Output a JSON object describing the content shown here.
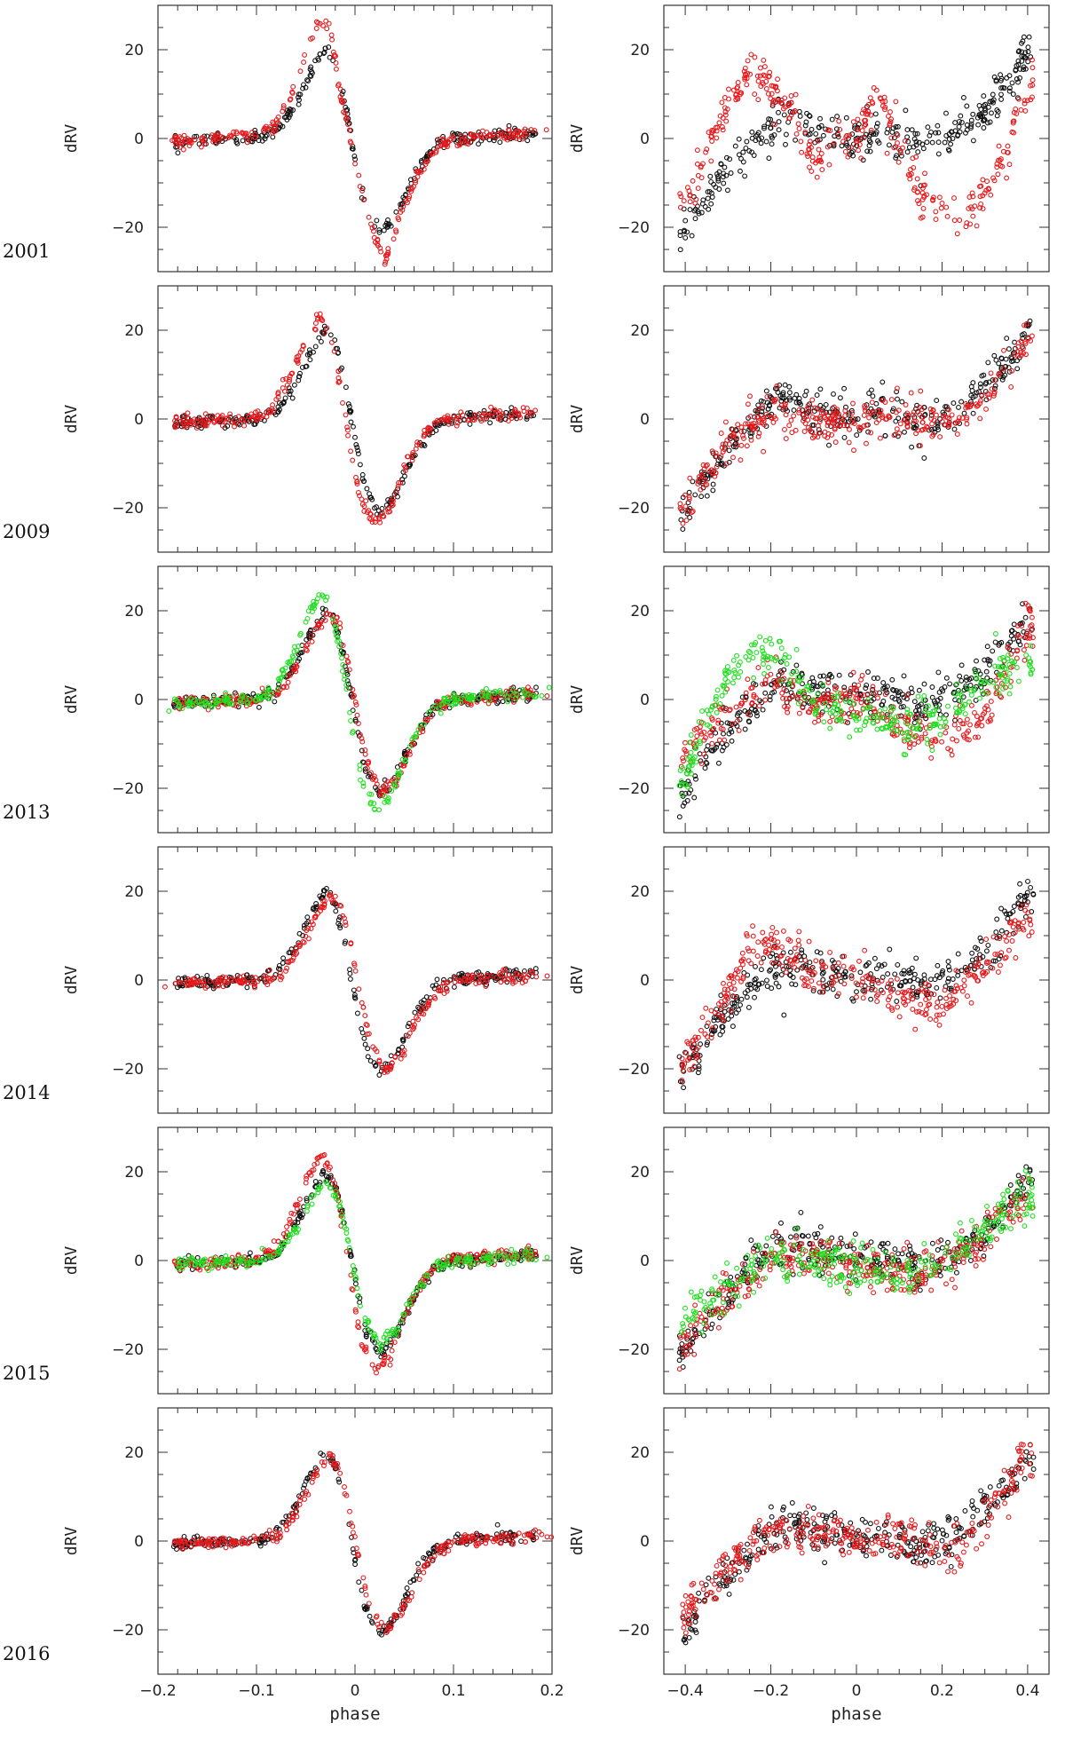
{
  "figure": {
    "ylabel": "dRV",
    "xlabel": "phase",
    "colors": {
      "black": "#111111",
      "red": "#e8191c",
      "green": "#1fe01f"
    }
  },
  "chart_data": {
    "type": "scatter",
    "layout": "6 rows x 2 columns of panels; each row is one epoch",
    "rows": [
      {
        "label": "2001",
        "colors_left": [
          "black",
          "red"
        ],
        "colors_right": [
          "black",
          "red"
        ]
      },
      {
        "label": "2009",
        "colors_left": [
          "black",
          "red"
        ],
        "colors_right": [
          "black",
          "red"
        ]
      },
      {
        "label": "2013",
        "colors_left": [
          "black",
          "red",
          "green"
        ],
        "colors_right": [
          "black",
          "red",
          "green"
        ]
      },
      {
        "label": "2014",
        "colors_left": [
          "black",
          "red"
        ],
        "colors_right": [
          "black",
          "red"
        ]
      },
      {
        "label": "2015",
        "colors_left": [
          "black",
          "red",
          "green"
        ],
        "colors_right": [
          "black",
          "red",
          "green"
        ]
      },
      {
        "label": "2016",
        "colors_left": [
          "black",
          "red"
        ],
        "colors_right": [
          "black",
          "red"
        ]
      }
    ],
    "left_panels": {
      "xlim": [
        -0.2,
        0.2
      ],
      "ylim": [
        -30,
        30
      ],
      "xticks": [
        "−0.2",
        "−0.1",
        "0",
        "0.1",
        "0.2"
      ],
      "xtick_values": [
        -0.2,
        -0.1,
        0,
        0.1,
        0.2
      ],
      "yticks": [
        "−20",
        "0",
        "20"
      ],
      "ytick_values": [
        -20,
        0,
        20
      ],
      "reference_curve_black": [
        [
          -0.2,
          -1
        ],
        [
          -0.1,
          0
        ],
        [
          -0.08,
          1.5
        ],
        [
          -0.06,
          8
        ],
        [
          -0.045,
          15
        ],
        [
          -0.03,
          20
        ],
        [
          -0.02,
          17
        ],
        [
          -0.01,
          8
        ],
        [
          0.0,
          -4
        ],
        [
          0.01,
          -15
        ],
        [
          0.025,
          -21
        ],
        [
          0.04,
          -18
        ],
        [
          0.06,
          -8
        ],
        [
          0.08,
          -2
        ],
        [
          0.1,
          0
        ],
        [
          0.2,
          1.5
        ]
      ],
      "shifted_curve_red_2001": [
        [
          -0.2,
          -1
        ],
        [
          -0.1,
          1
        ],
        [
          -0.08,
          3
        ],
        [
          -0.06,
          12
        ],
        [
          -0.045,
          22
        ],
        [
          -0.035,
          27
        ],
        [
          -0.025,
          24
        ],
        [
          -0.015,
          10
        ],
        [
          0.005,
          -10
        ],
        [
          0.02,
          -22
        ],
        [
          0.03,
          -28
        ],
        [
          0.045,
          -18
        ],
        [
          0.06,
          -10
        ],
        [
          0.08,
          -2
        ],
        [
          0.1,
          0
        ],
        [
          0.2,
          1.5
        ]
      ]
    },
    "right_panels": {
      "xlim": [
        -0.45,
        0.45
      ],
      "ylim": [
        -30,
        30
      ],
      "xticks": [
        "−0.4",
        "−0.2",
        "0",
        "0.2",
        "0.4"
      ],
      "xtick_values": [
        -0.4,
        -0.2,
        0,
        0.2,
        0.4
      ],
      "yticks": [
        "−20",
        "0",
        "20"
      ],
      "ytick_values": [
        -20,
        0,
        20
      ],
      "reference_curve_black": [
        [
          -0.4,
          -21
        ],
        [
          -0.35,
          -13
        ],
        [
          -0.3,
          -7
        ],
        [
          -0.25,
          -2
        ],
        [
          -0.2,
          3
        ],
        [
          -0.15,
          4
        ],
        [
          -0.1,
          2
        ],
        [
          -0.05,
          1
        ],
        [
          0.0,
          0
        ],
        [
          0.05,
          1
        ],
        [
          0.1,
          0
        ],
        [
          0.15,
          -1
        ],
        [
          0.2,
          0
        ],
        [
          0.25,
          3
        ],
        [
          0.3,
          7
        ],
        [
          0.35,
          12
        ],
        [
          0.4,
          19
        ]
      ],
      "residual_curve_red_2001": [
        [
          -0.4,
          -15
        ],
        [
          -0.35,
          -3
        ],
        [
          -0.3,
          8
        ],
        [
          -0.25,
          15
        ],
        [
          -0.2,
          12
        ],
        [
          -0.15,
          6
        ],
        [
          -0.1,
          -5
        ],
        [
          -0.05,
          0
        ],
        [
          0.0,
          0
        ],
        [
          0.05,
          10
        ],
        [
          0.1,
          -2
        ],
        [
          0.15,
          -12
        ],
        [
          0.2,
          -16
        ],
        [
          0.25,
          -18
        ],
        [
          0.3,
          -12
        ],
        [
          0.35,
          -2
        ],
        [
          0.4,
          12
        ]
      ]
    }
  }
}
